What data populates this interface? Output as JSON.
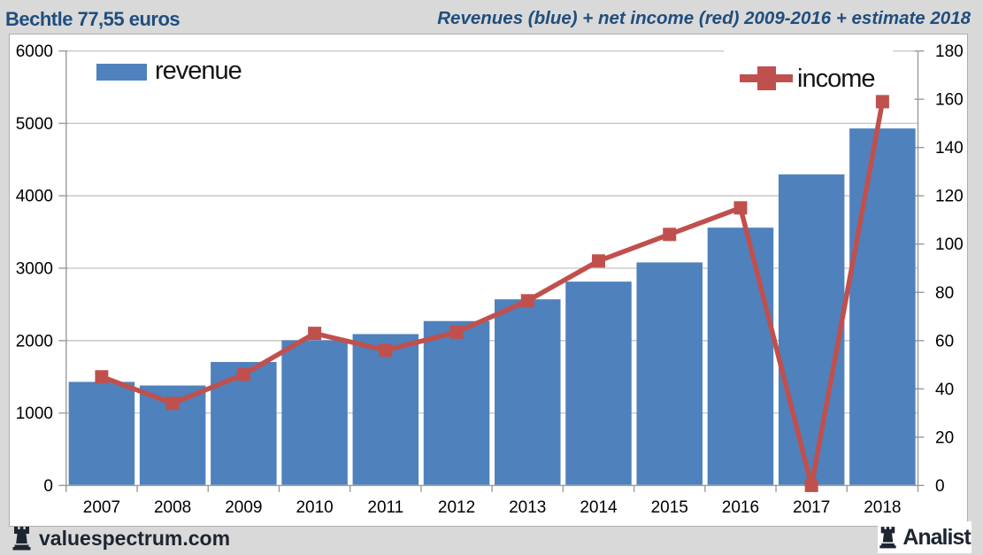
{
  "header": {
    "left_title": "Bechtle 77,55 euros",
    "right_title": "Revenues (blue) + net income (red) 2009-2016 + estimate 2018"
  },
  "footer": {
    "left_brand": "valuespectrum.com",
    "right_brand": "Analist"
  },
  "colors": {
    "background": "#d9d9d9",
    "panel": "#ffffff",
    "title_blue": "#204e7d",
    "bar_blue": "#4f81bd",
    "line_red": "#c0504d",
    "gridline": "#c3c3c3",
    "axis": "#9b9b9b",
    "axis_text": "#000000",
    "footer_text": "#1d2531"
  },
  "chart_data": {
    "type": "bar",
    "subtype": "combo-bar-line",
    "title": "Revenues (blue) + net income (red) 2009-2016 + estimate 2018",
    "categories": [
      "2007",
      "2008",
      "2009",
      "2010",
      "2011",
      "2012",
      "2013",
      "2014",
      "2015",
      "2016",
      "2017",
      "2018"
    ],
    "series": [
      {
        "name": "revenue",
        "type": "bar",
        "axis": "left",
        "color": "#4f81bd",
        "values": [
          1430,
          1380,
          1705,
          2005,
          2090,
          2270,
          2570,
          2815,
          3080,
          3560,
          4295,
          4930
        ]
      },
      {
        "name": "income",
        "type": "line",
        "axis": "right",
        "color": "#c0504d",
        "values": [
          45,
          34,
          46,
          63,
          56,
          63.5,
          76.5,
          93,
          104,
          115,
          0,
          159
        ]
      }
    ],
    "left_axis": {
      "min": 0,
      "max": 6000,
      "step": 1000,
      "tick_labels": [
        "0",
        "1000",
        "2000",
        "3000",
        "4000",
        "5000",
        "6000"
      ]
    },
    "right_axis": {
      "min": 0,
      "max": 180,
      "step": 20,
      "tick_labels": [
        "0",
        "20",
        "40",
        "60",
        "80",
        "100",
        "120",
        "140",
        "160",
        "180"
      ]
    },
    "legend": [
      {
        "label": "revenue",
        "marker": "bar-swatch"
      },
      {
        "label": "income",
        "marker": "line-square"
      }
    ],
    "grid": true,
    "legend_position": "inside-top",
    "xlabel": "",
    "ylabel": ""
  }
}
